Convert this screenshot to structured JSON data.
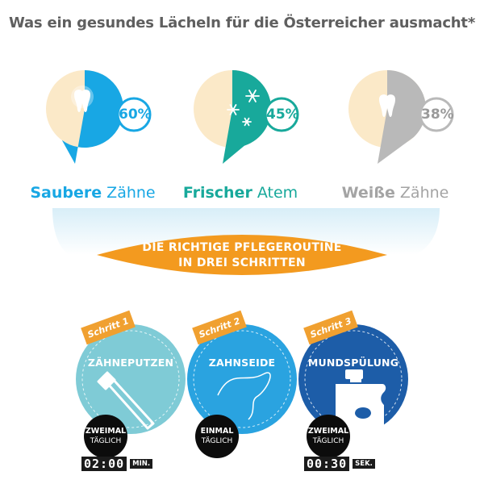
{
  "title": "Was ein gesundes Lächeln für die Österreicher ausmacht*",
  "chart_data": {
    "type": "pie",
    "items": [
      {
        "label_bold": "Saubere",
        "label_rest": " Zähne",
        "value": 60,
        "value_label": "60%",
        "color": "#18a7e4",
        "icon": "tooth-icon"
      },
      {
        "label_bold": "Frischer",
        "label_rest": " Atem",
        "value": 45,
        "value_label": "45%",
        "color": "#18a99b",
        "icon": "snowflake-icon"
      },
      {
        "label_bold": "Weiße",
        "label_rest": " Zähne",
        "value": 38,
        "value_label": "38%",
        "color": "#b9b9b9",
        "icon": "tooth-icon"
      }
    ],
    "remainder_color": "#fbe9c8"
  },
  "banner": {
    "line1": "DIE RICHTIGE PFLEGEROUTINE",
    "line2": "IN DREI SCHRITTEN",
    "color": "#f39a1f"
  },
  "steps": [
    {
      "badge": "Schritt 1",
      "title": "ZÄHNEPUTZEN",
      "freq1": "ZWEIMAL",
      "freq2": "TÄGLICH",
      "timer": "02:00",
      "unit": "MIN.",
      "color": "#7fcbd6",
      "icon": "toothbrush-icon"
    },
    {
      "badge": "Schritt 2",
      "title": "ZAHNSEIDE",
      "freq1": "EINMAL",
      "freq2": "TÄGLICH",
      "color": "#2aa3e0",
      "icon": "floss-icon"
    },
    {
      "badge": "Schritt 3",
      "title": "MUNDSPÜLUNG",
      "freq1": "ZWEIMAL",
      "freq2": "TÄGLICH",
      "timer": "00:30",
      "unit": "SEK.",
      "color": "#1d5da8",
      "icon": "mouthwash-bottle-icon"
    }
  ]
}
